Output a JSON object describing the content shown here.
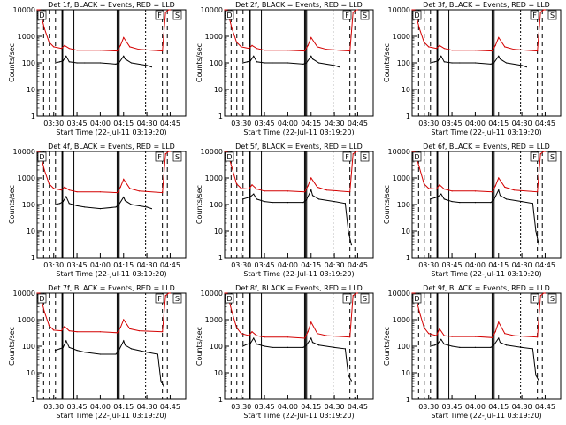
{
  "colors": {
    "events": "#000000",
    "lld": "#d40000",
    "axes": "#000000",
    "background": "#ffffff"
  },
  "common": {
    "ylabel": "Counts/sec",
    "xlabel": "Start Time (22-Jul-11 03:19:20)",
    "x_tick_labels": [
      "03:30",
      "03:45",
      "04:00",
      "04:15",
      "04:30",
      "04:45"
    ],
    "y_tick_labels": [
      "1",
      "10",
      "100",
      "1000",
      "10000"
    ],
    "title_suffix": "BLACK = Events, RED = LLD",
    "corner_markers": [
      "D",
      "F",
      "S"
    ]
  },
  "chart_data": [
    {
      "type": "line",
      "title": "Det 1f, BLACK = Events, RED = LLD",
      "xlabel": "Start Time (22-Jul-11 03:19:20)",
      "ylabel": "Counts/sec",
      "xlim": [
        "03:19:20",
        "04:55"
      ],
      "ylim": [
        1,
        10000
      ],
      "yscale": "log",
      "series": [
        {
          "name": "Events",
          "x": [
            "03:31",
            "03:34",
            "03:36",
            "03:38",
            "03:40",
            "03:45",
            "03:50",
            "04:00",
            "04:10",
            "04:12",
            "04:15",
            "04:16",
            "04:20",
            "04:30",
            "04:33"
          ],
          "values": [
            100,
            110,
            120,
            180,
            110,
            100,
            100,
            100,
            90,
            100,
            180,
            140,
            100,
            80,
            70
          ]
        },
        {
          "name": "LLD",
          "x": [
            "03:19:20",
            "03:21",
            "03:24",
            "03:27",
            "03:30",
            "03:35",
            "03:37",
            "03:40",
            "03:45",
            "04:00",
            "04:11",
            "04:13",
            "04:15",
            "04:19",
            "04:25",
            "04:40",
            "04:42",
            "04:44",
            "04:45"
          ],
          "values": [
            10000,
            10000,
            2000,
            600,
            400,
            350,
            450,
            350,
            300,
            300,
            280,
            450,
            900,
            400,
            320,
            280,
            8000,
            10000,
            10000
          ]
        }
      ]
    },
    {
      "type": "line",
      "title": "Det 2f, BLACK = Events, RED = LLD",
      "xlabel": "Start Time (22-Jul-11 03:19:20)",
      "ylabel": "Counts/sec",
      "xlim": [
        "03:19:20",
        "04:55"
      ],
      "ylim": [
        1,
        10000
      ],
      "yscale": "log",
      "series": [
        {
          "name": "Events",
          "x": [
            "03:31",
            "03:34",
            "03:36",
            "03:38",
            "03:40",
            "03:45",
            "03:50",
            "04:00",
            "04:10",
            "04:12",
            "04:15",
            "04:16",
            "04:20",
            "04:30",
            "04:33"
          ],
          "values": [
            100,
            110,
            120,
            180,
            110,
            100,
            100,
            100,
            90,
            100,
            180,
            140,
            100,
            80,
            70
          ]
        },
        {
          "name": "LLD",
          "x": [
            "03:19:20",
            "03:21",
            "03:24",
            "03:27",
            "03:30",
            "03:35",
            "03:37",
            "03:40",
            "03:45",
            "04:00",
            "04:11",
            "04:13",
            "04:15",
            "04:19",
            "04:25",
            "04:40",
            "04:42",
            "04:44",
            "04:45"
          ],
          "values": [
            10000,
            10000,
            2000,
            600,
            400,
            350,
            450,
            350,
            300,
            300,
            280,
            450,
            900,
            400,
            320,
            280,
            8000,
            10000,
            10000
          ]
        }
      ]
    },
    {
      "type": "line",
      "title": "Det 3f, BLACK = Events, RED = LLD",
      "xlabel": "Start Time (22-Jul-11 03:19:20)",
      "ylabel": "Counts/sec",
      "xlim": [
        "03:19:20",
        "04:55"
      ],
      "ylim": [
        1,
        10000
      ],
      "yscale": "log",
      "series": [
        {
          "name": "Events",
          "x": [
            "03:31",
            "03:34",
            "03:36",
            "03:38",
            "03:40",
            "03:45",
            "03:50",
            "04:00",
            "04:10",
            "04:12",
            "04:15",
            "04:16",
            "04:20",
            "04:30",
            "04:33"
          ],
          "values": [
            100,
            110,
            120,
            180,
            110,
            100,
            100,
            100,
            90,
            100,
            180,
            140,
            100,
            80,
            70
          ]
        },
        {
          "name": "LLD",
          "x": [
            "03:19:20",
            "03:21",
            "03:24",
            "03:27",
            "03:30",
            "03:35",
            "03:37",
            "03:40",
            "03:45",
            "04:00",
            "04:11",
            "04:13",
            "04:15",
            "04:19",
            "04:25",
            "04:40",
            "04:42",
            "04:44",
            "04:45"
          ],
          "values": [
            10000,
            10000,
            2000,
            600,
            400,
            350,
            450,
            350,
            300,
            300,
            280,
            450,
            900,
            400,
            320,
            280,
            8000,
            10000,
            10000
          ]
        }
      ]
    },
    {
      "type": "line",
      "title": "Det 4f, BLACK = Events, RED = LLD",
      "xlabel": "Start Time (22-Jul-11 03:19:20)",
      "ylabel": "Counts/sec",
      "xlim": [
        "03:19:20",
        "04:55"
      ],
      "ylim": [
        1,
        10000
      ],
      "yscale": "log",
      "series": [
        {
          "name": "Events",
          "x": [
            "03:31",
            "03:34",
            "03:36",
            "03:38",
            "03:40",
            "03:45",
            "03:50",
            "04:00",
            "04:10",
            "04:12",
            "04:15",
            "04:16",
            "04:20",
            "04:30",
            "04:33"
          ],
          "values": [
            100,
            110,
            130,
            200,
            110,
            90,
            80,
            70,
            80,
            100,
            190,
            140,
            100,
            80,
            70
          ]
        },
        {
          "name": "LLD",
          "x": [
            "03:19:20",
            "03:21",
            "03:24",
            "03:27",
            "03:30",
            "03:35",
            "03:37",
            "03:40",
            "03:45",
            "04:00",
            "04:11",
            "04:13",
            "04:15",
            "04:19",
            "04:25",
            "04:40",
            "04:42",
            "04:44",
            "04:45"
          ],
          "values": [
            10000,
            10000,
            2000,
            600,
            400,
            350,
            450,
            350,
            300,
            300,
            280,
            450,
            900,
            400,
            320,
            280,
            8000,
            10000,
            10000
          ]
        }
      ]
    },
    {
      "type": "line",
      "title": "Det 5f, BLACK = Events, RED = LLD",
      "xlabel": "Start Time (22-Jul-11 03:19:20)",
      "ylabel": "Counts/sec",
      "xlim": [
        "03:19:20",
        "04:55"
      ],
      "ylim": [
        1,
        10000
      ],
      "yscale": "log",
      "series": [
        {
          "name": "Events",
          "x": [
            "03:31",
            "03:34",
            "03:36",
            "03:38",
            "03:40",
            "03:45",
            "03:50",
            "04:00",
            "04:10",
            "04:12",
            "04:15",
            "04:16",
            "04:20",
            "04:30",
            "04:37",
            "04:39",
            "04:41"
          ],
          "values": [
            160,
            180,
            200,
            250,
            160,
            130,
            120,
            120,
            120,
            150,
            350,
            220,
            160,
            130,
            110,
            10,
            3
          ]
        },
        {
          "name": "LLD",
          "x": [
            "03:19:20",
            "03:21",
            "03:24",
            "03:27",
            "03:30",
            "03:35",
            "03:37",
            "03:40",
            "03:45",
            "04:00",
            "04:11",
            "04:13",
            "04:15",
            "04:19",
            "04:25",
            "04:40",
            "04:42",
            "04:44",
            "04:45"
          ],
          "values": [
            10000,
            10000,
            2500,
            600,
            400,
            380,
            550,
            380,
            320,
            320,
            300,
            500,
            1000,
            450,
            350,
            300,
            8000,
            10000,
            10000
          ]
        }
      ]
    },
    {
      "type": "line",
      "title": "Det 6f, BLACK = Events, RED = LLD",
      "xlabel": "Start Time (22-Jul-11 03:19:20)",
      "ylabel": "Counts/sec",
      "xlim": [
        "03:19:20",
        "04:55"
      ],
      "ylim": [
        1,
        10000
      ],
      "yscale": "log",
      "series": [
        {
          "name": "Events",
          "x": [
            "03:31",
            "03:34",
            "03:36",
            "03:38",
            "03:40",
            "03:45",
            "03:50",
            "04:00",
            "04:10",
            "04:12",
            "04:15",
            "04:16",
            "04:20",
            "04:30",
            "04:37",
            "04:39",
            "04:41"
          ],
          "values": [
            160,
            180,
            200,
            250,
            160,
            130,
            120,
            120,
            120,
            150,
            350,
            220,
            160,
            130,
            110,
            10,
            3
          ]
        },
        {
          "name": "LLD",
          "x": [
            "03:19:20",
            "03:21",
            "03:24",
            "03:27",
            "03:30",
            "03:35",
            "03:37",
            "03:40",
            "03:45",
            "04:00",
            "04:11",
            "04:13",
            "04:15",
            "04:19",
            "04:25",
            "04:40",
            "04:42",
            "04:44",
            "04:45"
          ],
          "values": [
            10000,
            10000,
            2500,
            600,
            400,
            380,
            550,
            380,
            320,
            320,
            300,
            500,
            1000,
            450,
            350,
            300,
            8000,
            10000,
            10000
          ]
        }
      ]
    },
    {
      "type": "line",
      "title": "Det 7f, BLACK = Events, RED = LLD",
      "xlabel": "Start Time (22-Jul-11 03:19:20)",
      "ylabel": "Counts/sec",
      "xlim": [
        "03:19:20",
        "04:55"
      ],
      "ylim": [
        1,
        10000
      ],
      "yscale": "log",
      "series": [
        {
          "name": "Events",
          "x": [
            "03:31",
            "03:34",
            "03:36",
            "03:38",
            "03:40",
            "03:45",
            "03:50",
            "04:00",
            "04:10",
            "04:12",
            "04:15",
            "04:16",
            "04:20",
            "04:30",
            "04:37",
            "04:39",
            "04:41"
          ],
          "values": [
            70,
            80,
            90,
            160,
            90,
            70,
            60,
            50,
            50,
            70,
            160,
            110,
            80,
            60,
            50,
            5,
            3
          ]
        },
        {
          "name": "LLD",
          "x": [
            "03:19:20",
            "03:21",
            "03:24",
            "03:27",
            "03:30",
            "03:35",
            "03:37",
            "03:40",
            "03:45",
            "04:00",
            "04:11",
            "04:13",
            "04:15",
            "04:19",
            "04:25",
            "04:40",
            "04:42",
            "04:44",
            "04:45"
          ],
          "values": [
            10000,
            10000,
            2000,
            600,
            400,
            380,
            550,
            380,
            350,
            350,
            320,
            500,
            1000,
            450,
            380,
            350,
            8000,
            10000,
            10000
          ]
        }
      ]
    },
    {
      "type": "line",
      "title": "Det 8f, BLACK = Events, RED = LLD",
      "xlabel": "Start Time (22-Jul-11 03:19:20)",
      "ylabel": "Counts/sec",
      "xlim": [
        "03:19:20",
        "04:55"
      ],
      "ylim": [
        1,
        10000
      ],
      "yscale": "log",
      "series": [
        {
          "name": "Events",
          "x": [
            "03:31",
            "03:34",
            "03:36",
            "03:38",
            "03:40",
            "03:45",
            "03:50",
            "04:00",
            "04:10",
            "04:12",
            "04:15",
            "04:16",
            "04:20",
            "04:30",
            "04:37",
            "04:39",
            "04:41"
          ],
          "values": [
            100,
            120,
            130,
            200,
            120,
            100,
            90,
            90,
            90,
            110,
            200,
            140,
            110,
            90,
            80,
            8,
            5
          ]
        },
        {
          "name": "LLD",
          "x": [
            "03:19:20",
            "03:21",
            "03:24",
            "03:27",
            "03:30",
            "03:35",
            "03:37",
            "03:40",
            "03:45",
            "04:00",
            "04:11",
            "04:13",
            "04:15",
            "04:19",
            "04:25",
            "04:40",
            "04:42",
            "04:44",
            "04:45"
          ],
          "values": [
            10000,
            10000,
            2000,
            500,
            300,
            250,
            350,
            250,
            220,
            220,
            200,
            350,
            800,
            300,
            250,
            220,
            8000,
            10000,
            10000
          ]
        }
      ]
    },
    {
      "type": "line",
      "title": "Det 9f, BLACK = Events, RED = LLD",
      "xlabel": "Start Time (22-Jul-11 03:19:20)",
      "ylabel": "Counts/sec",
      "xlim": [
        "03:19:20",
        "04:55"
      ],
      "ylim": [
        1,
        10000
      ],
      "yscale": "log",
      "series": [
        {
          "name": "Events",
          "x": [
            "03:31",
            "03:34",
            "03:36",
            "03:38",
            "03:40",
            "03:45",
            "03:50",
            "04:00",
            "04:10",
            "04:12",
            "04:15",
            "04:16",
            "04:20",
            "04:30",
            "04:37",
            "04:39",
            "04:41"
          ],
          "values": [
            100,
            110,
            130,
            180,
            120,
            100,
            90,
            90,
            90,
            110,
            200,
            140,
            110,
            90,
            80,
            8,
            5
          ]
        },
        {
          "name": "LLD",
          "x": [
            "03:19:20",
            "03:21",
            "03:24",
            "03:27",
            "03:30",
            "03:35",
            "03:37",
            "03:40",
            "03:45",
            "04:00",
            "04:11",
            "04:13",
            "04:15",
            "04:19",
            "04:25",
            "04:40",
            "04:42",
            "04:44",
            "04:45"
          ],
          "values": [
            10000,
            10000,
            2000,
            500,
            300,
            250,
            450,
            250,
            230,
            230,
            210,
            350,
            800,
            300,
            250,
            220,
            8000,
            10000,
            10000
          ]
        }
      ]
    }
  ]
}
